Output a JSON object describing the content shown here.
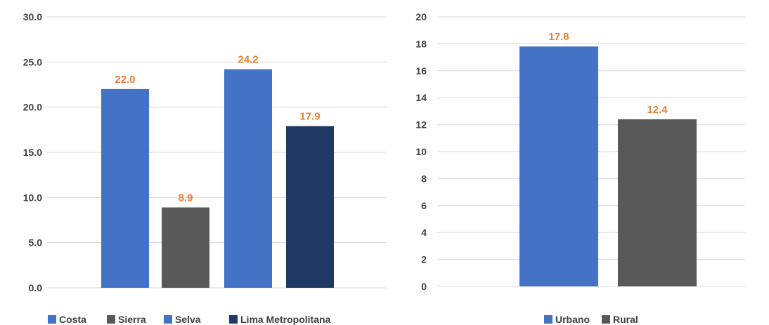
{
  "label_color": "#ED7D31",
  "grid_color": "#D9D9D9",
  "text_color": "#3F3F3F",
  "chart_data": [
    {
      "type": "bar",
      "title": "",
      "xlabel": "",
      "ylabel": "",
      "ylim": [
        0,
        30
      ],
      "yticks": [
        "0.0",
        "5.0",
        "10.0",
        "15.0",
        "20.0",
        "25.0",
        "30.0"
      ],
      "grid": true,
      "legend_position": "bottom",
      "categories": [
        "Costa",
        "Sierra",
        "Selva",
        "Lima Metropolitana"
      ],
      "values": [
        22.0,
        8.9,
        24.2,
        17.9
      ],
      "labels": [
        "22.0",
        "8.9",
        "24.2",
        "17.9"
      ],
      "colors": [
        "#4472C4",
        "#595959",
        "#4472C4",
        "#203864"
      ]
    },
    {
      "type": "bar",
      "title": "",
      "xlabel": "",
      "ylabel": "",
      "ylim": [
        0,
        20
      ],
      "yticks": [
        "0",
        "2",
        "4",
        "6",
        "8",
        "10",
        "12",
        "14",
        "16",
        "18",
        "20"
      ],
      "grid": true,
      "legend_position": "bottom",
      "categories": [
        "Urbano",
        "Rural"
      ],
      "values": [
        17.8,
        12.4
      ],
      "labels": [
        "17.8",
        "12.4"
      ],
      "colors": [
        "#4472C4",
        "#595959"
      ]
    }
  ]
}
